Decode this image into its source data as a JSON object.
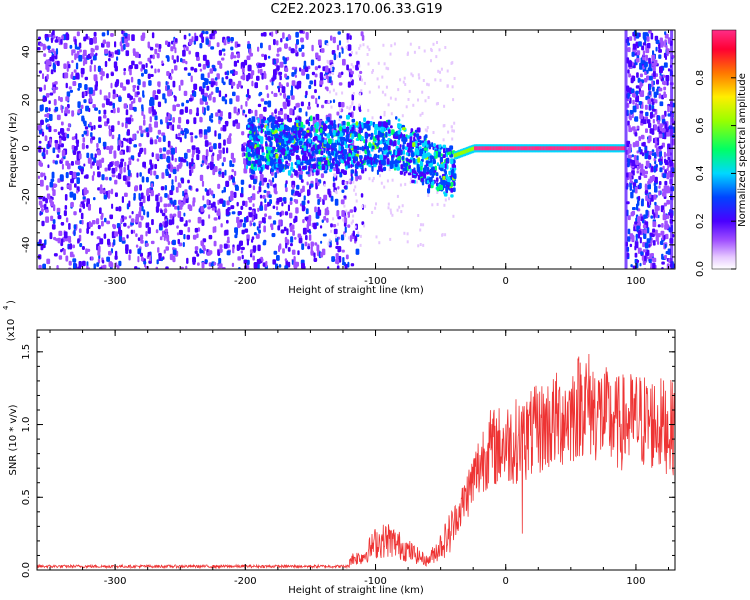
{
  "title": "C2E2.2023.170.06.33.G19",
  "chart_data": [
    {
      "type": "heatmap",
      "name": "spectrogram",
      "xlabel": "Height of straight line (km)",
      "ylabel": "Frequency (Hz)",
      "xlim": [
        -360,
        130
      ],
      "ylim": [
        -50,
        49
      ],
      "xticks": [
        -300,
        -200,
        -100,
        0,
        100
      ],
      "yticks": [
        -40,
        -20,
        0,
        20,
        40
      ],
      "colorbar": {
        "label": "Normalized spectral amplitude",
        "range": [
          0,
          1
        ],
        "ticks": [
          "0.0",
          "0.2",
          "0.4",
          "0.6",
          "0.8"
        ],
        "colors": [
          "#ffffff",
          "#d9a6ff",
          "#7a1fff",
          "#2a00ff",
          "#00e5ff",
          "#00ff66",
          "#9aff00",
          "#ffff00",
          "#ff8800",
          "#ff0044",
          "#ff3399"
        ]
      },
      "features": [
        {
          "label": "scattered noise",
          "x_range": [
            -360,
            -120
          ],
          "f_range": [
            -50,
            49
          ],
          "amplitude": 0.1
        },
        {
          "label": "broadband band",
          "x_range": [
            -200,
            -40
          ],
          "f_range": [
            -10,
            8
          ],
          "amplitude": 0.3
        },
        {
          "label": "narrow line",
          "x_range": [
            -40,
            90
          ],
          "f_center": 0,
          "amplitude": 1.0
        },
        {
          "label": "right edge noise",
          "x_range": [
            92,
            128
          ],
          "f_range": [
            -50,
            49
          ],
          "amplitude": 0.1
        }
      ]
    },
    {
      "type": "line",
      "name": "snr",
      "xlabel": "Height of straight line (km)",
      "ylabel": "SNR (10 * v/v)",
      "y_multiplier": "(x10",
      "y_multiplier_exp": "4",
      "y_multiplier_close": ")",
      "xlim": [
        -360,
        130
      ],
      "ylim": [
        0,
        1.65
      ],
      "xticks": [
        -300,
        -200,
        -100,
        0,
        100
      ],
      "yticks": [
        "0.0",
        "0.5",
        "1.0",
        "1.5"
      ],
      "color": "#ee3333",
      "envelope": [
        [
          -360,
          0.02
        ],
        [
          -200,
          0.03
        ],
        [
          -150,
          0.04
        ],
        [
          -110,
          0.12
        ],
        [
          -100,
          0.25
        ],
        [
          -90,
          0.28
        ],
        [
          -75,
          0.18
        ],
        [
          -60,
          0.08
        ],
        [
          -45,
          0.3
        ],
        [
          -35,
          0.5
        ],
        [
          -25,
          0.75
        ],
        [
          -15,
          1.0
        ],
        [
          0,
          1.05
        ],
        [
          15,
          1.1
        ],
        [
          30,
          1.2
        ],
        [
          50,
          1.3
        ],
        [
          60,
          1.42
        ],
        [
          70,
          1.32
        ],
        [
          85,
          1.22
        ],
        [
          100,
          1.25
        ],
        [
          115,
          1.22
        ],
        [
          130,
          1.18
        ]
      ]
    }
  ]
}
